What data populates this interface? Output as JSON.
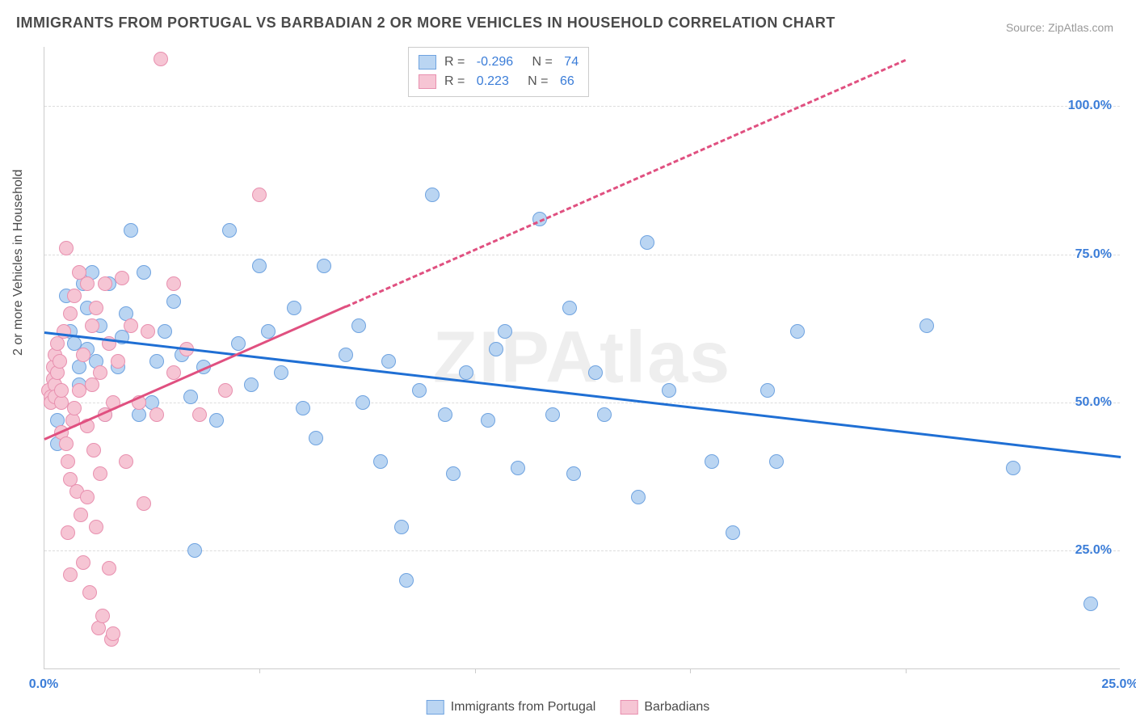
{
  "title": "IMMIGRANTS FROM PORTUGAL VS BARBADIAN 2 OR MORE VEHICLES IN HOUSEHOLD CORRELATION CHART",
  "source": "Source: ZipAtlas.com",
  "watermark": "ZIPAtlas",
  "ylabel": "2 or more Vehicles in Household",
  "chart": {
    "type": "scatter",
    "xlim": [
      0,
      25
    ],
    "ylim": [
      5,
      110
    ],
    "xtick_labels": [
      "0.0%",
      "25.0%"
    ],
    "xtick_positions": [
      0,
      25
    ],
    "x_minor_ticks": [
      5,
      10,
      15,
      20
    ],
    "ytick_labels": [
      "25.0%",
      "50.0%",
      "75.0%",
      "100.0%"
    ],
    "ytick_positions": [
      25,
      50,
      75,
      100
    ],
    "label_color": "#3b7dd8",
    "label_fontsize": 16,
    "grid_color": "#dddddd",
    "background_color": "#ffffff",
    "marker_radius": 9,
    "marker_border_width": 1,
    "series": [
      {
        "name": "Immigrants from Portugal",
        "key": "portugal",
        "fill_color": "#bad5f2",
        "border_color": "#6fa3e0",
        "trend_color": "#1f6fd4",
        "trend_width": 3,
        "trend_dash": "solid",
        "R": "-0.296",
        "N": "74",
        "trend": {
          "x1": 0,
          "y1": 62,
          "x2": 25,
          "y2": 41
        },
        "points": [
          [
            0.2,
            51
          ],
          [
            0.3,
            47
          ],
          [
            0.3,
            43
          ],
          [
            0.5,
            68
          ],
          [
            0.6,
            62
          ],
          [
            0.7,
            60
          ],
          [
            0.8,
            56
          ],
          [
            0.8,
            53
          ],
          [
            0.9,
            70
          ],
          [
            1.0,
            66
          ],
          [
            1.0,
            59
          ],
          [
            1.1,
            72
          ],
          [
            1.2,
            57
          ],
          [
            1.3,
            63
          ],
          [
            1.4,
            48
          ],
          [
            1.5,
            70
          ],
          [
            1.7,
            56
          ],
          [
            1.8,
            61
          ],
          [
            1.9,
            65
          ],
          [
            2.0,
            79
          ],
          [
            2.2,
            48
          ],
          [
            2.3,
            72
          ],
          [
            2.5,
            50
          ],
          [
            2.6,
            57
          ],
          [
            2.8,
            62
          ],
          [
            3.0,
            67
          ],
          [
            3.2,
            58
          ],
          [
            3.4,
            51
          ],
          [
            3.5,
            25
          ],
          [
            3.7,
            56
          ],
          [
            4.0,
            47
          ],
          [
            4.3,
            79
          ],
          [
            4.5,
            60
          ],
          [
            4.8,
            53
          ],
          [
            5.0,
            73
          ],
          [
            5.2,
            62
          ],
          [
            5.5,
            55
          ],
          [
            5.8,
            66
          ],
          [
            6.0,
            49
          ],
          [
            6.5,
            73
          ],
          [
            7.0,
            58
          ],
          [
            7.3,
            63
          ],
          [
            7.4,
            50
          ],
          [
            7.8,
            40
          ],
          [
            8.0,
            57
          ],
          [
            8.3,
            29
          ],
          [
            8.4,
            20
          ],
          [
            9.0,
            85
          ],
          [
            9.3,
            48
          ],
          [
            9.5,
            38
          ],
          [
            9.8,
            55
          ],
          [
            10.3,
            47
          ],
          [
            10.5,
            59
          ],
          [
            10.7,
            62
          ],
          [
            11.0,
            39
          ],
          [
            11.5,
            81
          ],
          [
            11.8,
            48
          ],
          [
            12.2,
            66
          ],
          [
            12.3,
            38
          ],
          [
            12.8,
            55
          ],
          [
            13.0,
            48
          ],
          [
            13.8,
            34
          ],
          [
            14.0,
            77
          ],
          [
            14.5,
            52
          ],
          [
            15.5,
            40
          ],
          [
            16.0,
            28
          ],
          [
            16.8,
            52
          ],
          [
            17.0,
            40
          ],
          [
            17.5,
            62
          ],
          [
            20.5,
            63
          ],
          [
            22.5,
            39
          ],
          [
            24.3,
            16
          ],
          [
            8.7,
            52
          ],
          [
            6.3,
            44
          ]
        ]
      },
      {
        "name": "Barbadians",
        "key": "barbadians",
        "fill_color": "#f6c5d4",
        "border_color": "#e890af",
        "trend_color": "#e05080",
        "trend_width": 3,
        "trend_dash_solid_end": 7,
        "trend_dash": "dashed",
        "R": "0.223",
        "N": "66",
        "trend": {
          "x1": 0,
          "y1": 44,
          "x2": 20,
          "y2": 108
        },
        "points": [
          [
            0.1,
            52
          ],
          [
            0.15,
            51
          ],
          [
            0.15,
            50
          ],
          [
            0.2,
            56
          ],
          [
            0.2,
            54
          ],
          [
            0.25,
            58
          ],
          [
            0.25,
            53
          ],
          [
            0.25,
            51
          ],
          [
            0.3,
            60
          ],
          [
            0.3,
            55
          ],
          [
            0.35,
            57
          ],
          [
            0.4,
            50
          ],
          [
            0.4,
            52
          ],
          [
            0.4,
            45
          ],
          [
            0.45,
            62
          ],
          [
            0.5,
            76
          ],
          [
            0.5,
            43
          ],
          [
            0.55,
            40
          ],
          [
            0.55,
            28
          ],
          [
            0.6,
            65
          ],
          [
            0.6,
            37
          ],
          [
            0.6,
            21
          ],
          [
            0.65,
            47
          ],
          [
            0.7,
            68
          ],
          [
            0.7,
            49
          ],
          [
            0.75,
            35
          ],
          [
            0.8,
            72
          ],
          [
            0.8,
            52
          ],
          [
            0.85,
            31
          ],
          [
            0.9,
            58
          ],
          [
            0.9,
            23
          ],
          [
            1.0,
            70
          ],
          [
            1.0,
            46
          ],
          [
            1.0,
            34
          ],
          [
            1.05,
            18
          ],
          [
            1.1,
            63
          ],
          [
            1.1,
            53
          ],
          [
            1.15,
            42
          ],
          [
            1.2,
            66
          ],
          [
            1.2,
            29
          ],
          [
            1.25,
            12
          ],
          [
            1.3,
            55
          ],
          [
            1.3,
            38
          ],
          [
            1.35,
            14
          ],
          [
            1.4,
            70
          ],
          [
            1.4,
            48
          ],
          [
            1.5,
            60
          ],
          [
            1.5,
            22
          ],
          [
            1.55,
            10
          ],
          [
            1.6,
            50
          ],
          [
            1.6,
            11
          ],
          [
            1.7,
            57
          ],
          [
            1.8,
            71
          ],
          [
            1.9,
            40
          ],
          [
            2.0,
            63
          ],
          [
            2.2,
            50
          ],
          [
            2.3,
            33
          ],
          [
            2.4,
            62
          ],
          [
            2.6,
            48
          ],
          [
            2.7,
            108
          ],
          [
            3.0,
            70
          ],
          [
            3.0,
            55
          ],
          [
            3.3,
            59
          ],
          [
            3.6,
            48
          ],
          [
            4.2,
            52
          ],
          [
            5.0,
            85
          ]
        ]
      }
    ]
  },
  "legend_bottom": [
    {
      "key": "portugal",
      "label": "Immigrants from Portugal"
    },
    {
      "key": "barbadians",
      "label": "Barbadians"
    }
  ]
}
